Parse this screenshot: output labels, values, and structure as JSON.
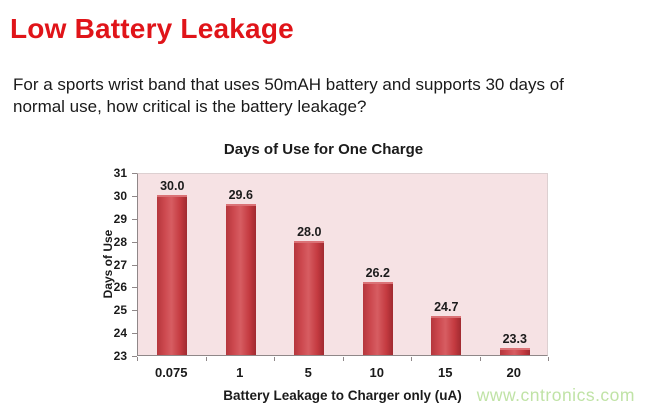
{
  "slide": {
    "title": "Low Battery Leakage",
    "intro_line1": "For a sports wrist band that uses 50mAH battery and supports 30 days of",
    "intro_line2": "normal use, how critical is the battery leakage?"
  },
  "watermark": "www.cntronics.com",
  "colors": {
    "heading_red": "#e01419",
    "bar_red": "#c43a40",
    "plot_background": "#f6e2e4",
    "watermark_green": "#c0e3a6"
  },
  "chart_data": {
    "type": "bar",
    "title": "Days of Use for One Charge",
    "categories": [
      "0.075",
      "1",
      "5",
      "10",
      "15",
      "20"
    ],
    "values": [
      30.0,
      29.6,
      28.0,
      26.2,
      24.7,
      23.3
    ],
    "value_labels": [
      "30.0",
      "29.6",
      "28.0",
      "26.2",
      "24.7",
      "23.3"
    ],
    "xlabel": "Battery Leakage to Charger only (uA)",
    "ylabel": "Days of Use",
    "ylim": [
      23,
      31
    ],
    "yticks": [
      23,
      24,
      25,
      26,
      27,
      28,
      29,
      30,
      31
    ],
    "grid": false,
    "legend": null
  }
}
